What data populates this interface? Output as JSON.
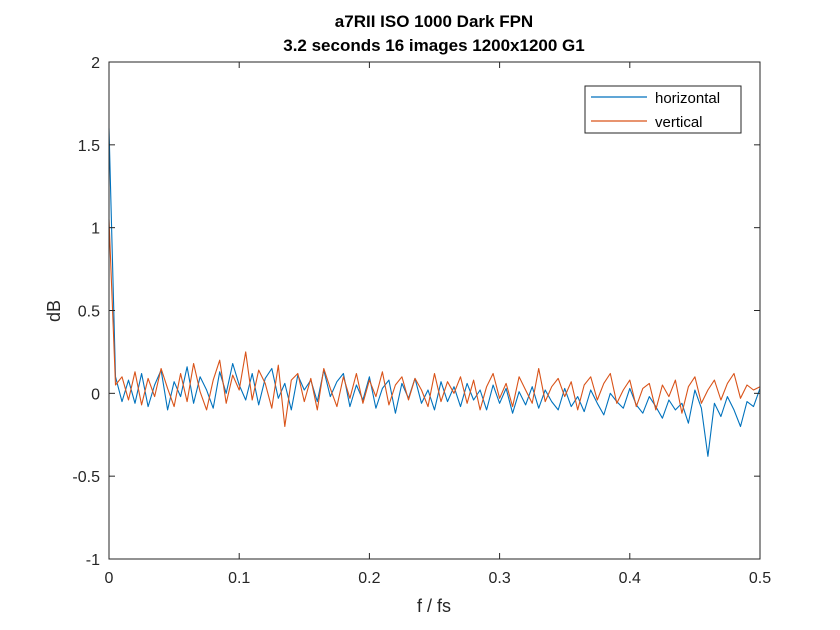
{
  "chart_data": {
    "type": "line",
    "title": [
      "a7RII ISO 1000 Dark FPN",
      "3.2 seconds 16 images 1200x1200 G1"
    ],
    "xlabel": "f / fs",
    "ylabel": "dB",
    "xlim": [
      0,
      0.5
    ],
    "ylim": [
      -1,
      2
    ],
    "xticks": [
      0,
      0.1,
      0.2,
      0.3,
      0.4,
      0.5
    ],
    "xtick_labels": [
      "0",
      "0.1",
      "0.2",
      "0.3",
      "0.4",
      "0.5"
    ],
    "yticks": [
      -1,
      -0.5,
      0,
      0.5,
      1,
      1.5,
      2
    ],
    "ytick_labels": [
      "-1",
      "-0.5",
      "0",
      "0.5",
      "1",
      "1.5",
      "2"
    ],
    "grid": false,
    "legend_position": "top-right",
    "series": [
      {
        "name": "horizontal",
        "color": "#0072BD",
        "x": [
          0.0,
          0.005,
          0.01,
          0.015,
          0.02,
          0.025,
          0.03,
          0.035,
          0.04,
          0.045,
          0.05,
          0.055,
          0.06,
          0.065,
          0.07,
          0.075,
          0.08,
          0.085,
          0.09,
          0.095,
          0.1,
          0.105,
          0.11,
          0.115,
          0.12,
          0.125,
          0.13,
          0.135,
          0.14,
          0.145,
          0.15,
          0.155,
          0.16,
          0.165,
          0.17,
          0.175,
          0.18,
          0.185,
          0.19,
          0.195,
          0.2,
          0.205,
          0.21,
          0.215,
          0.22,
          0.225,
          0.23,
          0.235,
          0.24,
          0.245,
          0.25,
          0.255,
          0.26,
          0.265,
          0.27,
          0.275,
          0.28,
          0.285,
          0.29,
          0.295,
          0.3,
          0.305,
          0.31,
          0.315,
          0.32,
          0.325,
          0.33,
          0.335,
          0.34,
          0.345,
          0.35,
          0.355,
          0.36,
          0.365,
          0.37,
          0.375,
          0.38,
          0.385,
          0.39,
          0.395,
          0.4,
          0.405,
          0.41,
          0.415,
          0.42,
          0.425,
          0.43,
          0.435,
          0.44,
          0.445,
          0.45,
          0.455,
          0.46,
          0.465,
          0.47,
          0.475,
          0.48,
          0.485,
          0.49,
          0.495,
          0.5
        ],
        "y": [
          1.6,
          0.1,
          -0.05,
          0.08,
          -0.06,
          0.12,
          -0.08,
          0.05,
          0.14,
          -0.1,
          0.07,
          -0.02,
          0.16,
          -0.06,
          0.1,
          0.02,
          -0.09,
          0.13,
          0.0,
          0.18,
          0.05,
          -0.04,
          0.12,
          -0.07,
          0.09,
          0.15,
          -0.03,
          0.06,
          -0.1,
          0.11,
          0.02,
          0.08,
          -0.05,
          0.14,
          -0.02,
          0.07,
          0.12,
          -0.08,
          0.05,
          -0.04,
          0.1,
          -0.09,
          0.03,
          0.08,
          -0.12,
          0.06,
          -0.03,
          0.09,
          -0.06,
          0.02,
          -0.1,
          0.07,
          -0.05,
          0.04,
          -0.08,
          0.06,
          -0.04,
          0.02,
          -0.1,
          0.05,
          -0.06,
          0.03,
          -0.12,
          0.01,
          -0.07,
          0.04,
          -0.09,
          0.02,
          -0.05,
          -0.1,
          0.03,
          -0.08,
          -0.02,
          -0.11,
          0.02,
          -0.06,
          -0.13,
          0.0,
          -0.05,
          -0.09,
          0.03,
          -0.07,
          -0.12,
          -0.02,
          -0.08,
          -0.15,
          -0.04,
          -0.1,
          -0.06,
          -0.18,
          0.02,
          -0.09,
          -0.38,
          -0.06,
          -0.14,
          -0.02,
          -0.1,
          -0.2,
          -0.05,
          -0.08,
          0.03
        ]
      },
      {
        "name": "vertical",
        "color": "#D95319",
        "x": [
          0.0,
          0.005,
          0.01,
          0.015,
          0.02,
          0.025,
          0.03,
          0.035,
          0.04,
          0.045,
          0.05,
          0.055,
          0.06,
          0.065,
          0.07,
          0.075,
          0.08,
          0.085,
          0.09,
          0.095,
          0.1,
          0.105,
          0.11,
          0.115,
          0.12,
          0.125,
          0.13,
          0.135,
          0.14,
          0.145,
          0.15,
          0.155,
          0.16,
          0.165,
          0.17,
          0.175,
          0.18,
          0.185,
          0.19,
          0.195,
          0.2,
          0.205,
          0.21,
          0.215,
          0.22,
          0.225,
          0.23,
          0.235,
          0.24,
          0.245,
          0.25,
          0.255,
          0.26,
          0.265,
          0.27,
          0.275,
          0.28,
          0.285,
          0.29,
          0.295,
          0.3,
          0.305,
          0.31,
          0.315,
          0.32,
          0.325,
          0.33,
          0.335,
          0.34,
          0.345,
          0.35,
          0.355,
          0.36,
          0.365,
          0.37,
          0.375,
          0.38,
          0.385,
          0.39,
          0.395,
          0.4,
          0.405,
          0.41,
          0.415,
          0.42,
          0.425,
          0.43,
          0.435,
          0.44,
          0.445,
          0.45,
          0.455,
          0.46,
          0.465,
          0.47,
          0.475,
          0.48,
          0.485,
          0.49,
          0.495,
          0.5
        ],
        "y": [
          1.05,
          0.05,
          0.1,
          -0.04,
          0.13,
          -0.07,
          0.09,
          -0.02,
          0.15,
          0.03,
          -0.08,
          0.12,
          -0.05,
          0.18,
          0.01,
          -0.1,
          0.08,
          0.2,
          -0.06,
          0.11,
          0.02,
          0.25,
          -0.04,
          0.14,
          0.06,
          -0.09,
          0.17,
          -0.2,
          0.08,
          0.12,
          -0.05,
          0.09,
          -0.1,
          0.15,
          0.03,
          -0.08,
          0.1,
          -0.03,
          0.12,
          -0.06,
          0.08,
          -0.02,
          0.13,
          -0.07,
          0.05,
          0.1,
          -0.04,
          0.09,
          0.02,
          -0.08,
          0.12,
          -0.05,
          0.07,
          0.0,
          0.1,
          -0.06,
          0.08,
          -0.1,
          0.04,
          0.12,
          -0.03,
          0.06,
          -0.08,
          0.1,
          0.02,
          -0.06,
          0.15,
          -0.05,
          0.04,
          0.09,
          -0.02,
          0.07,
          -0.1,
          0.05,
          0.1,
          -0.04,
          0.06,
          0.12,
          -0.06,
          0.02,
          0.08,
          -0.08,
          0.03,
          0.06,
          -0.1,
          0.05,
          -0.02,
          0.08,
          -0.12,
          0.04,
          0.1,
          -0.06,
          0.02,
          0.08,
          -0.04,
          0.06,
          0.12,
          -0.03,
          0.05,
          0.02,
          0.04
        ]
      }
    ]
  }
}
